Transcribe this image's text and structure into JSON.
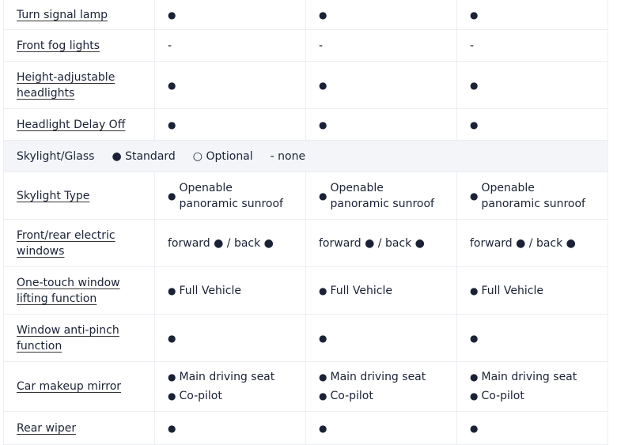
{
  "rows": [
    {
      "label": "Turn signal lamp",
      "cells": [
        [
          {
            "bullet": true,
            "text": ""
          }
        ],
        [
          {
            "bullet": true,
            "text": ""
          }
        ],
        [
          {
            "bullet": true,
            "text": ""
          }
        ]
      ],
      "h": 38
    },
    {
      "label": "Front fog lights",
      "cells": [
        [
          {
            "bullet": false,
            "text": "-"
          }
        ],
        [
          {
            "bullet": false,
            "text": "-"
          }
        ],
        [
          {
            "bullet": false,
            "text": "-"
          }
        ]
      ],
      "h": 40
    },
    {
      "label": "Height-adjustable headlights",
      "cells": [
        [
          {
            "bullet": true,
            "text": ""
          }
        ],
        [
          {
            "bullet": true,
            "text": ""
          }
        ],
        [
          {
            "bullet": true,
            "text": ""
          }
        ]
      ],
      "h": 60
    },
    {
      "label": "Headlight Delay Off",
      "cells": [
        [
          {
            "bullet": true,
            "text": ""
          }
        ],
        [
          {
            "bullet": true,
            "text": ""
          }
        ],
        [
          {
            "bullet": true,
            "text": ""
          }
        ]
      ],
      "h": 40
    },
    {
      "section": true,
      "title": "Skylight/Glass",
      "legend": [
        "● Standard",
        "○ Optional",
        "- none"
      ],
      "h": 40
    },
    {
      "label": "Skylight Type",
      "cells": [
        [
          {
            "bullet": true,
            "text": "Openable panoramic sunroof"
          }
        ],
        [
          {
            "bullet": true,
            "text": "Openable panoramic sunroof"
          }
        ],
        [
          {
            "bullet": true,
            "text": "Openable panoramic sunroof"
          }
        ]
      ],
      "h": 60
    },
    {
      "label": "Front/rear electric windows",
      "cells": [
        [
          {
            "bullet": false,
            "text": "forward ● / back ●"
          }
        ],
        [
          {
            "bullet": false,
            "text": "forward ● / back ●"
          }
        ],
        [
          {
            "bullet": false,
            "text": "forward ● / back ●"
          }
        ]
      ],
      "h": 60
    },
    {
      "label": "One-touch window lifting function",
      "cells": [
        [
          {
            "bullet": true,
            "text": "Full Vehicle"
          }
        ],
        [
          {
            "bullet": true,
            "text": "Full Vehicle"
          }
        ],
        [
          {
            "bullet": true,
            "text": "Full Vehicle"
          }
        ]
      ],
      "h": 60
    },
    {
      "label": "Window anti-pinch function",
      "cells": [
        [
          {
            "bullet": true,
            "text": ""
          }
        ],
        [
          {
            "bullet": true,
            "text": ""
          }
        ],
        [
          {
            "bullet": true,
            "text": ""
          }
        ]
      ],
      "h": 60
    },
    {
      "label": "Car makeup mirror",
      "cells": [
        [
          {
            "bullet": true,
            "text": "Main driving seat"
          },
          {
            "bullet": true,
            "text": "Co-pilot"
          }
        ],
        [
          {
            "bullet": true,
            "text": "Main driving seat"
          },
          {
            "bullet": true,
            "text": "Co-pilot"
          }
        ],
        [
          {
            "bullet": true,
            "text": "Main driving seat"
          },
          {
            "bullet": true,
            "text": "Co-pilot"
          }
        ]
      ],
      "h": 63
    },
    {
      "label": "Rear wiper",
      "cells": [
        [
          {
            "bullet": true,
            "text": ""
          }
        ],
        [
          {
            "bullet": true,
            "text": ""
          }
        ],
        [
          {
            "bullet": true,
            "text": ""
          }
        ]
      ],
      "h": 42
    }
  ]
}
